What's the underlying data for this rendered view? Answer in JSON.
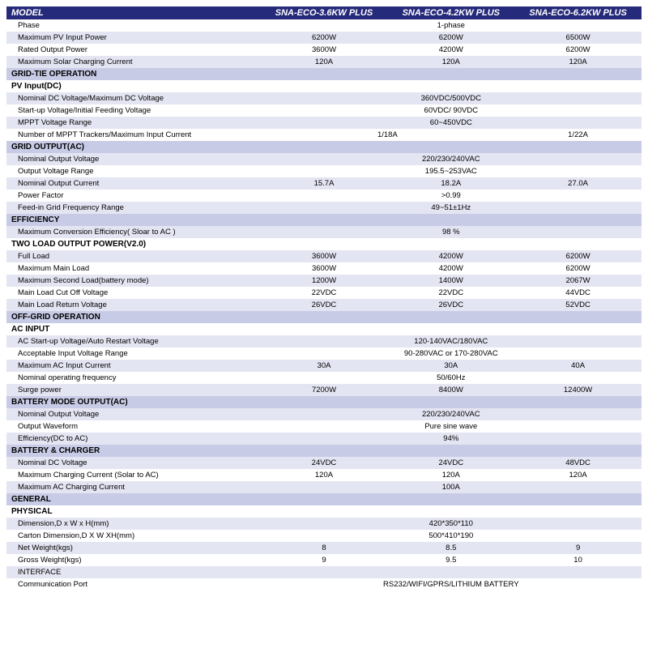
{
  "colors": {
    "header_bg": "#262a7a",
    "section_bg": "#c8cbe6",
    "shade_bg": "#e4e5f2",
    "text": "#000000",
    "header_text": "#ffffff"
  },
  "header": {
    "model": "MODEL",
    "c1": "SNA-ECO-3.6KW PLUS",
    "c2": "SNA-ECO-4.2KW PLUS",
    "c3": "SNA-ECO-6.2KW PLUS"
  },
  "r1": {
    "l": "Phase",
    "v": "1-phase"
  },
  "r2": {
    "l": "Maximum PV Input Power",
    "a": "6200W",
    "b": "6200W",
    "c": "6500W"
  },
  "r3": {
    "l": "Rated Output Power",
    "a": "3600W",
    "b": "4200W",
    "c": "6200W"
  },
  "r4": {
    "l": "Maximum Solar Charging Current",
    "a": "120A",
    "b": "120A",
    "c": "120A"
  },
  "s1": "GRID-TIE OPERATION",
  "s1a": "PV Input(DC)",
  "r5": {
    "l": "Nominal DC Voltage/Maximum DC Voltage",
    "v": "360VDC/500VDC"
  },
  "r6": {
    "l": "Start-up Voltage/Initial Feeding Voltage",
    "v": "60VDC/ 90VDC"
  },
  "r7": {
    "l": "MPPT Voltage Range",
    "v": "60~450VDC"
  },
  "r8": {
    "l": "Number of MPPT Trackers/Maximum Input Current",
    "a": "1/18A",
    "b": "",
    "c": "1/22A"
  },
  "s2": "GRID OUTPUT(AC)",
  "r9": {
    "l": "Nominal Output Voltage",
    "v": "220/230/240VAC"
  },
  "r10": {
    "l": "Output Voltage Range",
    "v": "195.5~253VAC"
  },
  "r11": {
    "l": "Nominal Output Current",
    "a": "15.7A",
    "b": "18.2A",
    "c": "27.0A"
  },
  "r12": {
    "l": "Power Factor",
    "v": ">0.99"
  },
  "r13": {
    "l": "Feed-in Grid Frequency Range",
    "v": "49~51±1Hz"
  },
  "s3": "EFFICIENCY",
  "r14": {
    "l": "Maximum Conversion Efficiency( Sloar to AC )",
    "v": "98 %"
  },
  "s4": "TWO LOAD OUTPUT POWER(V2.0)",
  "r15": {
    "l": "Full Load",
    "a": "3600W",
    "b": "4200W",
    "c": "6200W"
  },
  "r16": {
    "l": "Maximum Main Load",
    "a": "3600W",
    "b": "4200W",
    "c": "6200W"
  },
  "r17": {
    "l": "Maximum Second Load(battery mode)",
    "a": "1200W",
    "b": "1400W",
    "c": "2067W"
  },
  "r18": {
    "l": "Main Load Cut Off  Voltage",
    "a": "22VDC",
    "b": "22VDC",
    "c": "44VDC"
  },
  "r19": {
    "l": "Main Load Return  Voltage",
    "a": "26VDC",
    "b": "26VDC",
    "c": "52VDC"
  },
  "s5": "OFF-GRID OPERATION",
  "s5a": "AC INPUT",
  "r20": {
    "l": "AC Start-up Voltage/Auto Restart Voltage",
    "v": "120-140VAC/180VAC"
  },
  "r21": {
    "l": "Acceptable Input Voltage Range",
    "v": "90-280VAC or 170-280VAC"
  },
  "r22": {
    "l": "Maximum AC Input Current",
    "a": "30A",
    "b": "30A",
    "c": "40A"
  },
  "r23": {
    "l": "Nominal operating frequency",
    "v": "50/60Hz"
  },
  "r24": {
    "l": "Surge power",
    "a": "7200W",
    "b": "8400W",
    "c": "12400W"
  },
  "s6": "BATTERY MODE OUTPUT(AC)",
  "r25": {
    "l": "Nominal Output Voltage",
    "v": "220/230/240VAC"
  },
  "r26": {
    "l": "Output Waveform",
    "v": "Pure  sine wave"
  },
  "r27": {
    "l": "Efficiency(DC to AC)",
    "v": "94%"
  },
  "s7": "BATTERY & CHARGER",
  "r28": {
    "l": "Nominal DC Voltage",
    "a": "24VDC",
    "b": "24VDC",
    "c": "48VDC"
  },
  "r29": {
    "l": "Maximum  Charging Current  (Solar to AC)",
    "a": "120A",
    "b": "120A",
    "c": "120A"
  },
  "r30": {
    "l": "Maximum AC Charging Current",
    "v": "100A"
  },
  "s8": "GENERAL",
  "s8a": "PHYSICAL",
  "r31": {
    "l": "Dimension,D x  W  x  H(mm)",
    "v": "420*350*110"
  },
  "r32": {
    "l": "Carton Dimension,D X W XH(mm)",
    "v": "500*410*190"
  },
  "r33": {
    "l": "Net Weight(kgs)",
    "a": "8",
    "b": "8.5",
    "c": "9"
  },
  "r34": {
    "l": "Gross Weight(kgs)",
    "a": "9",
    "b": "9.5",
    "c": "10"
  },
  "s9": "INTERFACE",
  "r35": {
    "l": "Communication Port",
    "v": "RS232/WIFI/GPRS/LITHIUM BATTERY"
  }
}
